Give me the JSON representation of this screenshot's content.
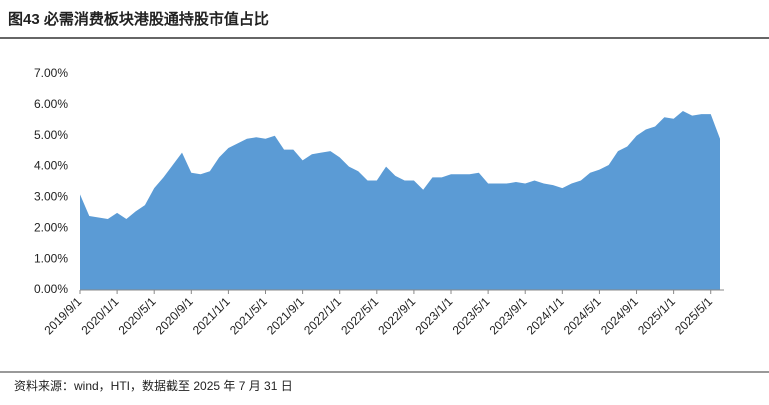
{
  "chart_data": {
    "type": "area",
    "title": "图43 必需消费板块港股通持股市值占比",
    "source": "资料来源：wind，HTI，数据截至 2025 年 7 月 31 日",
    "color": "#5b9bd5",
    "categories": [
      "2019/9/1",
      null,
      null,
      null,
      "2020/1/1",
      null,
      null,
      null,
      "2020/5/1",
      null,
      null,
      null,
      "2020/9/1",
      null,
      null,
      null,
      "2021/1/1",
      null,
      null,
      null,
      "2021/5/1",
      null,
      null,
      null,
      "2021/9/1",
      null,
      null,
      null,
      "2022/1/1",
      null,
      null,
      null,
      "2022/5/1",
      null,
      null,
      null,
      "2022/9/1",
      null,
      null,
      null,
      "2023/1/1",
      null,
      null,
      null,
      "2023/5/1",
      null,
      null,
      null,
      "2023/9/1",
      null,
      null,
      null,
      "2024/1/1",
      null,
      null,
      null,
      "2024/5/1",
      null,
      null,
      null,
      "2024/9/1",
      null,
      null,
      null,
      "2025/1/1",
      null,
      null,
      null,
      "2025/5/1",
      null
    ],
    "values": [
      3.1,
      2.4,
      2.35,
      2.3,
      2.5,
      2.3,
      2.55,
      2.75,
      3.3,
      3.65,
      4.05,
      4.45,
      3.8,
      3.75,
      3.85,
      4.3,
      4.6,
      4.75,
      4.9,
      4.95,
      4.9,
      5.0,
      4.55,
      4.55,
      4.2,
      4.4,
      4.45,
      4.5,
      4.3,
      4.0,
      3.85,
      3.55,
      3.55,
      4.0,
      3.7,
      3.55,
      3.55,
      3.25,
      3.65,
      3.65,
      3.75,
      3.75,
      3.75,
      3.8,
      3.45,
      3.45,
      3.45,
      3.5,
      3.45,
      3.55,
      3.45,
      3.4,
      3.3,
      3.45,
      3.55,
      3.8,
      3.9,
      4.05,
      4.5,
      4.65,
      5.0,
      5.2,
      5.3,
      5.6,
      5.55,
      5.8,
      5.65,
      5.7,
      5.7,
      4.9
    ],
    "ylim": [
      0,
      7
    ],
    "yticks": [
      {
        "value": 0,
        "label": "0.00%"
      },
      {
        "value": 1,
        "label": "1.00%"
      },
      {
        "value": 2,
        "label": "2.00%"
      },
      {
        "value": 3,
        "label": "3.00%"
      },
      {
        "value": 4,
        "label": "4.00%"
      },
      {
        "value": 5,
        "label": "5.00%"
      },
      {
        "value": 6,
        "label": "6.00%"
      },
      {
        "value": 7,
        "label": "7.00%"
      }
    ],
    "grid": false
  }
}
